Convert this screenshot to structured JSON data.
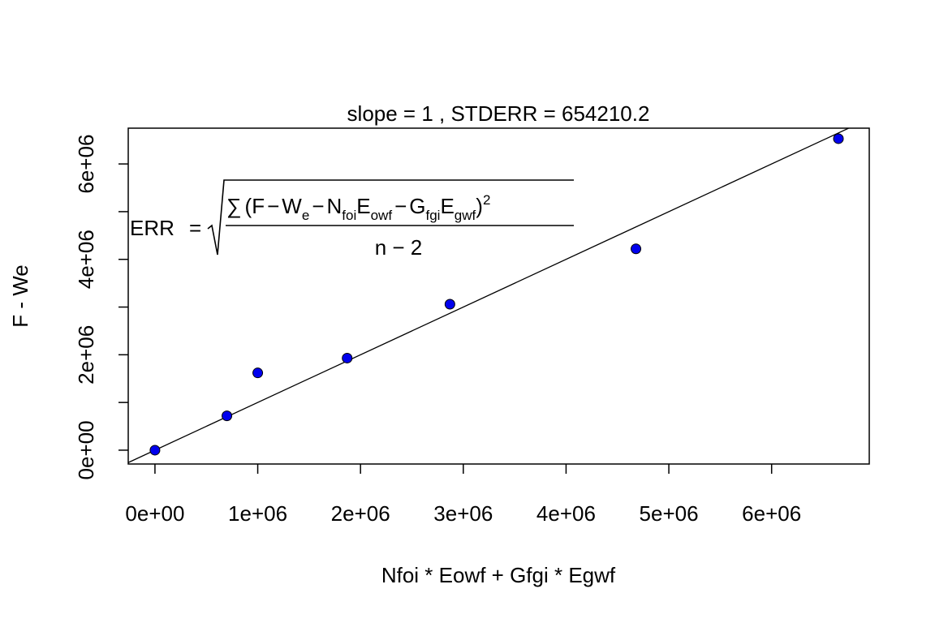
{
  "chart_data": {
    "type": "scatter",
    "title": "slope =  1  , STDERR =  654210.2",
    "xlabel": "Nfoi * Eowf + Gfgi * Egwf",
    "ylabel": "F - We",
    "x_ticks": [
      "0e+00",
      "1e+06",
      "2e+06",
      "3e+06",
      "4e+06",
      "5e+06",
      "6e+06"
    ],
    "x_tick_values": [
      0,
      1000000,
      2000000,
      3000000,
      4000000,
      5000000,
      6000000
    ],
    "y_ticks": [
      "0e+00",
      "2e+06",
      "4e+06",
      "6e+06"
    ],
    "y_tick_values": [
      0,
      2000000,
      4000000,
      6000000
    ],
    "y_minor_tick_values": [
      1000000,
      3000000,
      5000000
    ],
    "xlim": [
      -260000,
      6950000
    ],
    "ylim": [
      -290000,
      6750000
    ],
    "grid": false,
    "points": [
      {
        "x": 0,
        "y": 0
      },
      {
        "x": 700000,
        "y": 720000
      },
      {
        "x": 1000000,
        "y": 1620000
      },
      {
        "x": 1870000,
        "y": 1930000
      },
      {
        "x": 2870000,
        "y": 3060000
      },
      {
        "x": 4680000,
        "y": 4220000
      },
      {
        "x": 6650000,
        "y": 6530000
      }
    ],
    "fit_line": {
      "slope": 1,
      "intercept": 0
    },
    "point_color": "#0000ee",
    "point_edge_color": "#000000",
    "annotation": {
      "lhs": "ERR",
      "equals": "=",
      "sum": "∑",
      "open_paren": "(",
      "F": "F",
      "minus": "−",
      "W": "W",
      "W_sub": "e",
      "N": "N",
      "N_sub": "foi",
      "E1": "E",
      "E1_sub": "owf",
      "G": "G",
      "G_sub": "fgi",
      "E2": "E",
      "E2_sub": "gwf",
      "close_paren": ")",
      "power": "2",
      "denominator": "n − 2"
    }
  }
}
